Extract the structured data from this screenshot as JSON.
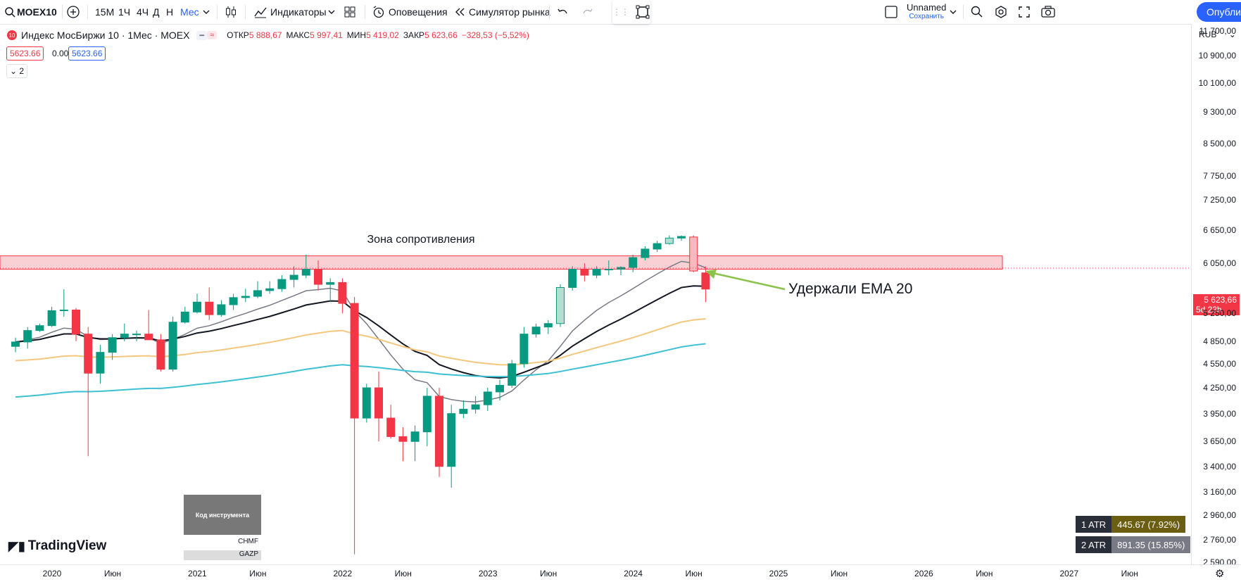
{
  "toolbar": {
    "symbol": "MOEX10",
    "intervals": [
      "15М",
      "1Ч",
      "4Ч",
      "Д",
      "Н",
      "Мес"
    ],
    "active_interval": "Мес",
    "indicators_label": "Индикаторы",
    "alerts_label": "Оповещения",
    "replay_label": "Симулятор рынка",
    "layout_name": "Unnamed",
    "layout_save": "Сохранить",
    "publish_label": "Опублик"
  },
  "legend": {
    "badge": "10",
    "title": "Индекс МосБиржи 10 · 1Мес · MOEX",
    "o_label": "ОТКР",
    "o_val": "5 888,67",
    "h_label": "МАКС",
    "h_val": "5 997,41",
    "l_label": "МИН",
    "l_val": "5 419,02",
    "c_label": "ЗАКР",
    "c_val": "5 623,66",
    "change": "−328,53 (−5,52%)",
    "bid": "5623.66",
    "spread": "0.00",
    "ask": "5623.66",
    "collapse": "2"
  },
  "axis": {
    "currency": "RUB",
    "price_labels": [
      "11 700,00",
      "10 900,00",
      "10 100,00",
      "9 300,00",
      "8 500,00",
      "7 750,00",
      "7 250,00",
      "6 650,00",
      "6 050,00",
      "5 250,00",
      "4 850,00",
      "4 550,00",
      "4 250,00",
      "3 950,00",
      "3 650,00",
      "3 400,00",
      "3 160,00",
      "2 960,00",
      "2 760,00",
      "2 590,00"
    ],
    "last_price": "5 623,66",
    "countdown": "5d 23h",
    "time_labels": [
      "2020",
      "Июн",
      "2021",
      "Июн",
      "2022",
      "Июн",
      "2023",
      "Июн",
      "2024",
      "Июн",
      "2025",
      "Июн",
      "2026",
      "Июн",
      "2027",
      "Июн"
    ]
  },
  "annotations": {
    "zone_label": "Зона сопротивления",
    "ema_note": "Удержали EMA 20",
    "instrument_box": "Код инструмента",
    "tickers": [
      "CHMF",
      "GAZP"
    ]
  },
  "atr": {
    "atr1_label": "1 ATR",
    "atr1_val": "445.67 (7.92%)",
    "atr2_label": "2 ATR",
    "atr2_val": "891.35 (15.85%)"
  },
  "brand": "TradingView",
  "colors": {
    "up": "#089981",
    "down": "#f23645",
    "accent": "#2962ff",
    "zone": "#f7c6cb",
    "ema_short": "#787b86",
    "ema20": "#131722",
    "ema50": "#f5c77e",
    "ema100": "#3ec0d3"
  },
  "chart_data": {
    "type": "candlestick",
    "interval": "1M",
    "candles": [
      {
        "date": "2020-01",
        "o": 4780,
        "h": 4900,
        "l": 4700,
        "c": 4840
      },
      {
        "date": "2020-02",
        "o": 4840,
        "h": 5050,
        "l": 4750,
        "c": 5000
      },
      {
        "date": "2020-03",
        "o": 5000,
        "h": 5100,
        "l": 4980,
        "c": 5070
      },
      {
        "date": "2020-04",
        "o": 5070,
        "h": 5350,
        "l": 5050,
        "c": 5290
      },
      {
        "date": "2020-05",
        "o": 5290,
        "h": 5620,
        "l": 5200,
        "c": 5300
      },
      {
        "date": "2020-06",
        "o": 5300,
        "h": 5330,
        "l": 4850,
        "c": 4950
      },
      {
        "date": "2020-07",
        "o": 4950,
        "h": 5050,
        "l": 3500,
        "c": 4430
      },
      {
        "date": "2020-08",
        "o": 4430,
        "h": 4800,
        "l": 4300,
        "c": 4700
      },
      {
        "date": "2020-09",
        "o": 4700,
        "h": 4950,
        "l": 4600,
        "c": 4900
      },
      {
        "date": "2020-10",
        "o": 4900,
        "h": 5100,
        "l": 4850,
        "c": 4950
      },
      {
        "date": "2020-11",
        "o": 4950,
        "h": 5000,
        "l": 4850,
        "c": 4950
      },
      {
        "date": "2020-12",
        "o": 4950,
        "h": 5300,
        "l": 4900,
        "c": 4870
      },
      {
        "date": "2021-01",
        "o": 4870,
        "h": 4950,
        "l": 4450,
        "c": 4480
      },
      {
        "date": "2021-02",
        "o": 4480,
        "h": 5200,
        "l": 4450,
        "c": 5120
      },
      {
        "date": "2021-03",
        "o": 5120,
        "h": 5350,
        "l": 5100,
        "c": 5270
      },
      {
        "date": "2021-04",
        "o": 5270,
        "h": 5550,
        "l": 5250,
        "c": 5420
      },
      {
        "date": "2021-05",
        "o": 5420,
        "h": 5650,
        "l": 5150,
        "c": 5230
      },
      {
        "date": "2021-06",
        "o": 5230,
        "h": 5450,
        "l": 5200,
        "c": 5380
      },
      {
        "date": "2021-07",
        "o": 5380,
        "h": 5550,
        "l": 5300,
        "c": 5490
      },
      {
        "date": "2021-08",
        "o": 5490,
        "h": 5630,
        "l": 5420,
        "c": 5510
      },
      {
        "date": "2021-09",
        "o": 5510,
        "h": 5750,
        "l": 5480,
        "c": 5600
      },
      {
        "date": "2021-10",
        "o": 5600,
        "h": 5750,
        "l": 5550,
        "c": 5630
      },
      {
        "date": "2021-11",
        "o": 5630,
        "h": 5850,
        "l": 5580,
        "c": 5780
      },
      {
        "date": "2021-12",
        "o": 5780,
        "h": 6000,
        "l": 5650,
        "c": 5850
      },
      {
        "date": "2022-01",
        "o": 5850,
        "h": 6200,
        "l": 5800,
        "c": 5950
      },
      {
        "date": "2022-02",
        "o": 5950,
        "h": 6100,
        "l": 5600,
        "c": 5700
      },
      {
        "date": "2022-03",
        "o": 5700,
        "h": 5800,
        "l": 5420,
        "c": 5730
      },
      {
        "date": "2022-04",
        "o": 5730,
        "h": 5800,
        "l": 5250,
        "c": 5400
      },
      {
        "date": "2022-05",
        "o": 5400,
        "h": 5500,
        "l": 2650,
        "c": 3900
      },
      {
        "date": "2022-06",
        "o": 3900,
        "h": 4300,
        "l": 3850,
        "c": 4250
      },
      {
        "date": "2022-07",
        "o": 4250,
        "h": 4450,
        "l": 3650,
        "c": 3900
      },
      {
        "date": "2022-08",
        "o": 3900,
        "h": 4050,
        "l": 3680,
        "c": 3700
      },
      {
        "date": "2022-09",
        "o": 3700,
        "h": 3800,
        "l": 3450,
        "c": 3650
      },
      {
        "date": "2022-10",
        "o": 3650,
        "h": 3820,
        "l": 3450,
        "c": 3750
      },
      {
        "date": "2022-11",
        "o": 3750,
        "h": 4250,
        "l": 3600,
        "c": 4150
      },
      {
        "date": "2022-12",
        "o": 4150,
        "h": 4250,
        "l": 3300,
        "c": 3400
      },
      {
        "date": "2023-01",
        "o": 3400,
        "h": 4050,
        "l": 3200,
        "c": 3950
      },
      {
        "date": "2023-02",
        "o": 3950,
        "h": 4100,
        "l": 3900,
        "c": 4000
      },
      {
        "date": "2023-03",
        "o": 4000,
        "h": 4150,
        "l": 3950,
        "c": 4050
      },
      {
        "date": "2023-04",
        "o": 4050,
        "h": 4250,
        "l": 3980,
        "c": 4200
      },
      {
        "date": "2023-05",
        "o": 4200,
        "h": 4350,
        "l": 4100,
        "c": 4280
      },
      {
        "date": "2023-06",
        "o": 4280,
        "h": 4600,
        "l": 4250,
        "c": 4550
      },
      {
        "date": "2023-07",
        "o": 4550,
        "h": 5050,
        "l": 4500,
        "c": 4950
      },
      {
        "date": "2023-08",
        "o": 4950,
        "h": 5100,
        "l": 4900,
        "c": 5050
      },
      {
        "date": "2023-09",
        "o": 5050,
        "h": 5150,
        "l": 4950,
        "c": 5100
      },
      {
        "date": "2023-10",
        "o": 5100,
        "h": 5700,
        "l": 5050,
        "c": 5650
      },
      {
        "date": "2023-11",
        "o": 5650,
        "h": 6000,
        "l": 5600,
        "c": 5950
      },
      {
        "date": "2023-12",
        "o": 5950,
        "h": 6050,
        "l": 5750,
        "c": 5850
      },
      {
        "date": "2024-01",
        "o": 5850,
        "h": 6000,
        "l": 5800,
        "c": 5950
      },
      {
        "date": "2024-02",
        "o": 5950,
        "h": 6100,
        "l": 5850,
        "c": 5950
      },
      {
        "date": "2024-03",
        "o": 5950,
        "h": 6000,
        "l": 5850,
        "c": 5980
      },
      {
        "date": "2024-04",
        "o": 5980,
        "h": 6200,
        "l": 5900,
        "c": 6150
      },
      {
        "date": "2024-05",
        "o": 6150,
        "h": 6350,
        "l": 6100,
        "c": 6300
      },
      {
        "date": "2024-06",
        "o": 6300,
        "h": 6450,
        "l": 6250,
        "c": 6400
      },
      {
        "date": "2024-07",
        "o": 6400,
        "h": 6550,
        "l": 6380,
        "c": 6500
      },
      {
        "date": "2024-08",
        "o": 6500,
        "h": 6550,
        "l": 6450,
        "c": 6530
      },
      {
        "date": "2024-09",
        "o": 6520,
        "h": 6550,
        "l": 5900,
        "c": 5920
      },
      {
        "date": "2024-10",
        "o": 5888.67,
        "h": 5997.41,
        "l": 5419.02,
        "c": 5623.66
      }
    ],
    "resistance_zone": [
      5950,
      6180
    ]
  }
}
